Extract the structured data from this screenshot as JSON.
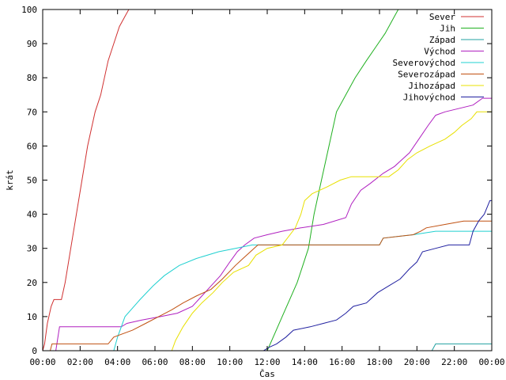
{
  "chart_data": {
    "type": "line",
    "xlabel": "Čas",
    "ylabel": "krát",
    "x_unit": "hours",
    "xlim": [
      0,
      24
    ],
    "ylim": [
      0,
      100
    ],
    "x_ticks": [
      {
        "value": 0,
        "label": "00:00"
      },
      {
        "value": 2,
        "label": "02:00"
      },
      {
        "value": 4,
        "label": "04:00"
      },
      {
        "value": 6,
        "label": "06:00"
      },
      {
        "value": 8,
        "label": "08:00"
      },
      {
        "value": 10,
        "label": "10:00"
      },
      {
        "value": 12,
        "label": "12:00"
      },
      {
        "value": 14,
        "label": "14:00"
      },
      {
        "value": 16,
        "label": "16:00"
      },
      {
        "value": 18,
        "label": "18:00"
      },
      {
        "value": 20,
        "label": "20:00"
      },
      {
        "value": 22,
        "label": "22:00"
      },
      {
        "value": 24,
        "label": "00:00"
      }
    ],
    "y_ticks": [
      0,
      10,
      20,
      30,
      40,
      50,
      60,
      70,
      80,
      90,
      100
    ],
    "grid": false,
    "legend_position": "top-right",
    "series": [
      {
        "name": "Sever",
        "color": "#d03030",
        "points": [
          [
            0,
            0
          ],
          [
            0.1,
            2
          ],
          [
            0.25,
            8
          ],
          [
            0.45,
            13
          ],
          [
            0.6,
            15
          ],
          [
            1.0,
            15
          ],
          [
            1.2,
            20
          ],
          [
            1.5,
            30
          ],
          [
            1.8,
            40
          ],
          [
            2.1,
            50
          ],
          [
            2.4,
            60
          ],
          [
            2.8,
            70
          ],
          [
            3.1,
            75
          ],
          [
            3.3,
            80
          ],
          [
            3.5,
            85
          ],
          [
            3.8,
            90
          ],
          [
            4.1,
            95
          ],
          [
            4.4,
            98
          ],
          [
            4.6,
            100
          ]
        ]
      },
      {
        "name": "Jih",
        "color": "#20b020",
        "points": [
          [
            0,
            0
          ],
          [
            12.0,
            0
          ],
          [
            12.4,
            5
          ],
          [
            12.8,
            10
          ],
          [
            13.2,
            15
          ],
          [
            13.6,
            20
          ],
          [
            13.9,
            25
          ],
          [
            14.2,
            30
          ],
          [
            14.5,
            40
          ],
          [
            14.9,
            50
          ],
          [
            15.3,
            60
          ],
          [
            15.7,
            70
          ],
          [
            16.2,
            75
          ],
          [
            16.7,
            80
          ],
          [
            17.3,
            85
          ],
          [
            17.8,
            89
          ],
          [
            18.3,
            93
          ],
          [
            18.7,
            97
          ],
          [
            19.0,
            100
          ]
        ]
      },
      {
        "name": "Západ",
        "color": "#20a0a0",
        "points": [
          [
            0,
            0
          ],
          [
            20.8,
            0
          ],
          [
            21.0,
            2
          ],
          [
            24,
            2
          ]
        ]
      },
      {
        "name": "Východ",
        "color": "#b020c0",
        "points": [
          [
            0,
            0
          ],
          [
            0.7,
            0
          ],
          [
            0.9,
            7
          ],
          [
            4.2,
            7
          ],
          [
            4.5,
            8
          ],
          [
            5.3,
            9
          ],
          [
            6.3,
            10
          ],
          [
            7.2,
            11
          ],
          [
            8.0,
            13
          ],
          [
            8.5,
            16
          ],
          [
            9.0,
            19
          ],
          [
            9.5,
            22
          ],
          [
            10.0,
            26
          ],
          [
            10.4,
            29
          ],
          [
            10.8,
            31
          ],
          [
            11.3,
            33
          ],
          [
            12.0,
            34
          ],
          [
            12.8,
            35
          ],
          [
            13.8,
            36
          ],
          [
            15.0,
            37
          ],
          [
            16.2,
            39
          ],
          [
            16.5,
            43
          ],
          [
            17.0,
            47
          ],
          [
            17.5,
            49
          ],
          [
            18.2,
            52
          ],
          [
            18.8,
            54
          ],
          [
            19.2,
            56
          ],
          [
            19.6,
            58
          ],
          [
            20.1,
            62
          ],
          [
            20.6,
            66
          ],
          [
            21.0,
            69
          ],
          [
            21.5,
            70
          ],
          [
            23.0,
            72
          ],
          [
            23.5,
            74
          ],
          [
            24,
            74
          ]
        ]
      },
      {
        "name": "Severovýchod",
        "color": "#20d0d0",
        "points": [
          [
            0,
            0
          ],
          [
            3.8,
            0
          ],
          [
            4.0,
            4
          ],
          [
            4.4,
            10
          ],
          [
            5.2,
            15
          ],
          [
            5.9,
            19
          ],
          [
            6.5,
            22
          ],
          [
            7.3,
            25
          ],
          [
            8.2,
            27
          ],
          [
            9.4,
            29
          ],
          [
            10.3,
            30
          ],
          [
            11.2,
            31
          ],
          [
            12.0,
            31
          ],
          [
            18.0,
            31
          ],
          [
            18.2,
            33
          ],
          [
            19.8,
            34
          ],
          [
            21.0,
            35
          ],
          [
            24,
            35
          ]
        ]
      },
      {
        "name": "Severozápad",
        "color": "#c05010",
        "points": [
          [
            0,
            0
          ],
          [
            0.4,
            0
          ],
          [
            0.5,
            2
          ],
          [
            3.5,
            2
          ],
          [
            3.8,
            4
          ],
          [
            4.8,
            6
          ],
          [
            5.5,
            8
          ],
          [
            6.2,
            10
          ],
          [
            6.9,
            12
          ],
          [
            7.5,
            14
          ],
          [
            8.2,
            16
          ],
          [
            9.0,
            18
          ],
          [
            9.6,
            21
          ],
          [
            10.3,
            25
          ],
          [
            10.7,
            27
          ],
          [
            11.1,
            29
          ],
          [
            11.5,
            31
          ],
          [
            12.0,
            31
          ],
          [
            18.0,
            31
          ],
          [
            18.2,
            33
          ],
          [
            19.8,
            34
          ],
          [
            20.2,
            35
          ],
          [
            20.5,
            36
          ],
          [
            21.5,
            37
          ],
          [
            22.5,
            38
          ],
          [
            24,
            38
          ]
        ]
      },
      {
        "name": "Jihozápad",
        "color": "#e8e000",
        "points": [
          [
            0,
            0
          ],
          [
            6.9,
            0
          ],
          [
            7.1,
            3
          ],
          [
            7.5,
            7
          ],
          [
            8.0,
            11
          ],
          [
            8.5,
            14
          ],
          [
            9.1,
            17
          ],
          [
            9.6,
            20
          ],
          [
            10.2,
            23
          ],
          [
            11.0,
            25
          ],
          [
            11.4,
            28
          ],
          [
            12.0,
            30
          ],
          [
            12.8,
            31
          ],
          [
            13.5,
            36
          ],
          [
            13.8,
            40
          ],
          [
            14.0,
            44
          ],
          [
            14.4,
            46
          ],
          [
            15.2,
            48
          ],
          [
            15.9,
            50
          ],
          [
            16.5,
            51
          ],
          [
            18.5,
            51
          ],
          [
            19.0,
            53
          ],
          [
            19.5,
            56
          ],
          [
            20.0,
            58
          ],
          [
            20.7,
            60
          ],
          [
            21.5,
            62
          ],
          [
            22.0,
            64
          ],
          [
            22.4,
            66
          ],
          [
            22.9,
            68
          ],
          [
            23.2,
            70
          ],
          [
            24,
            70
          ]
        ]
      },
      {
        "name": "Jihovýchod",
        "color": "#2020a0",
        "points": [
          [
            0,
            0
          ],
          [
            11.8,
            0
          ],
          [
            12.1,
            1
          ],
          [
            12.5,
            2
          ],
          [
            13.0,
            4
          ],
          [
            13.4,
            6
          ],
          [
            14.3,
            7
          ],
          [
            15.0,
            8
          ],
          [
            15.7,
            9
          ],
          [
            16.2,
            11
          ],
          [
            16.6,
            13
          ],
          [
            17.3,
            14
          ],
          [
            17.9,
            17
          ],
          [
            18.5,
            19
          ],
          [
            19.1,
            21
          ],
          [
            19.6,
            24
          ],
          [
            20.0,
            26
          ],
          [
            20.3,
            29
          ],
          [
            21.0,
            30
          ],
          [
            21.7,
            31
          ],
          [
            22.8,
            31
          ],
          [
            23.0,
            35
          ],
          [
            23.3,
            38
          ],
          [
            23.6,
            40
          ],
          [
            23.9,
            44
          ],
          [
            24,
            44
          ]
        ]
      }
    ]
  }
}
